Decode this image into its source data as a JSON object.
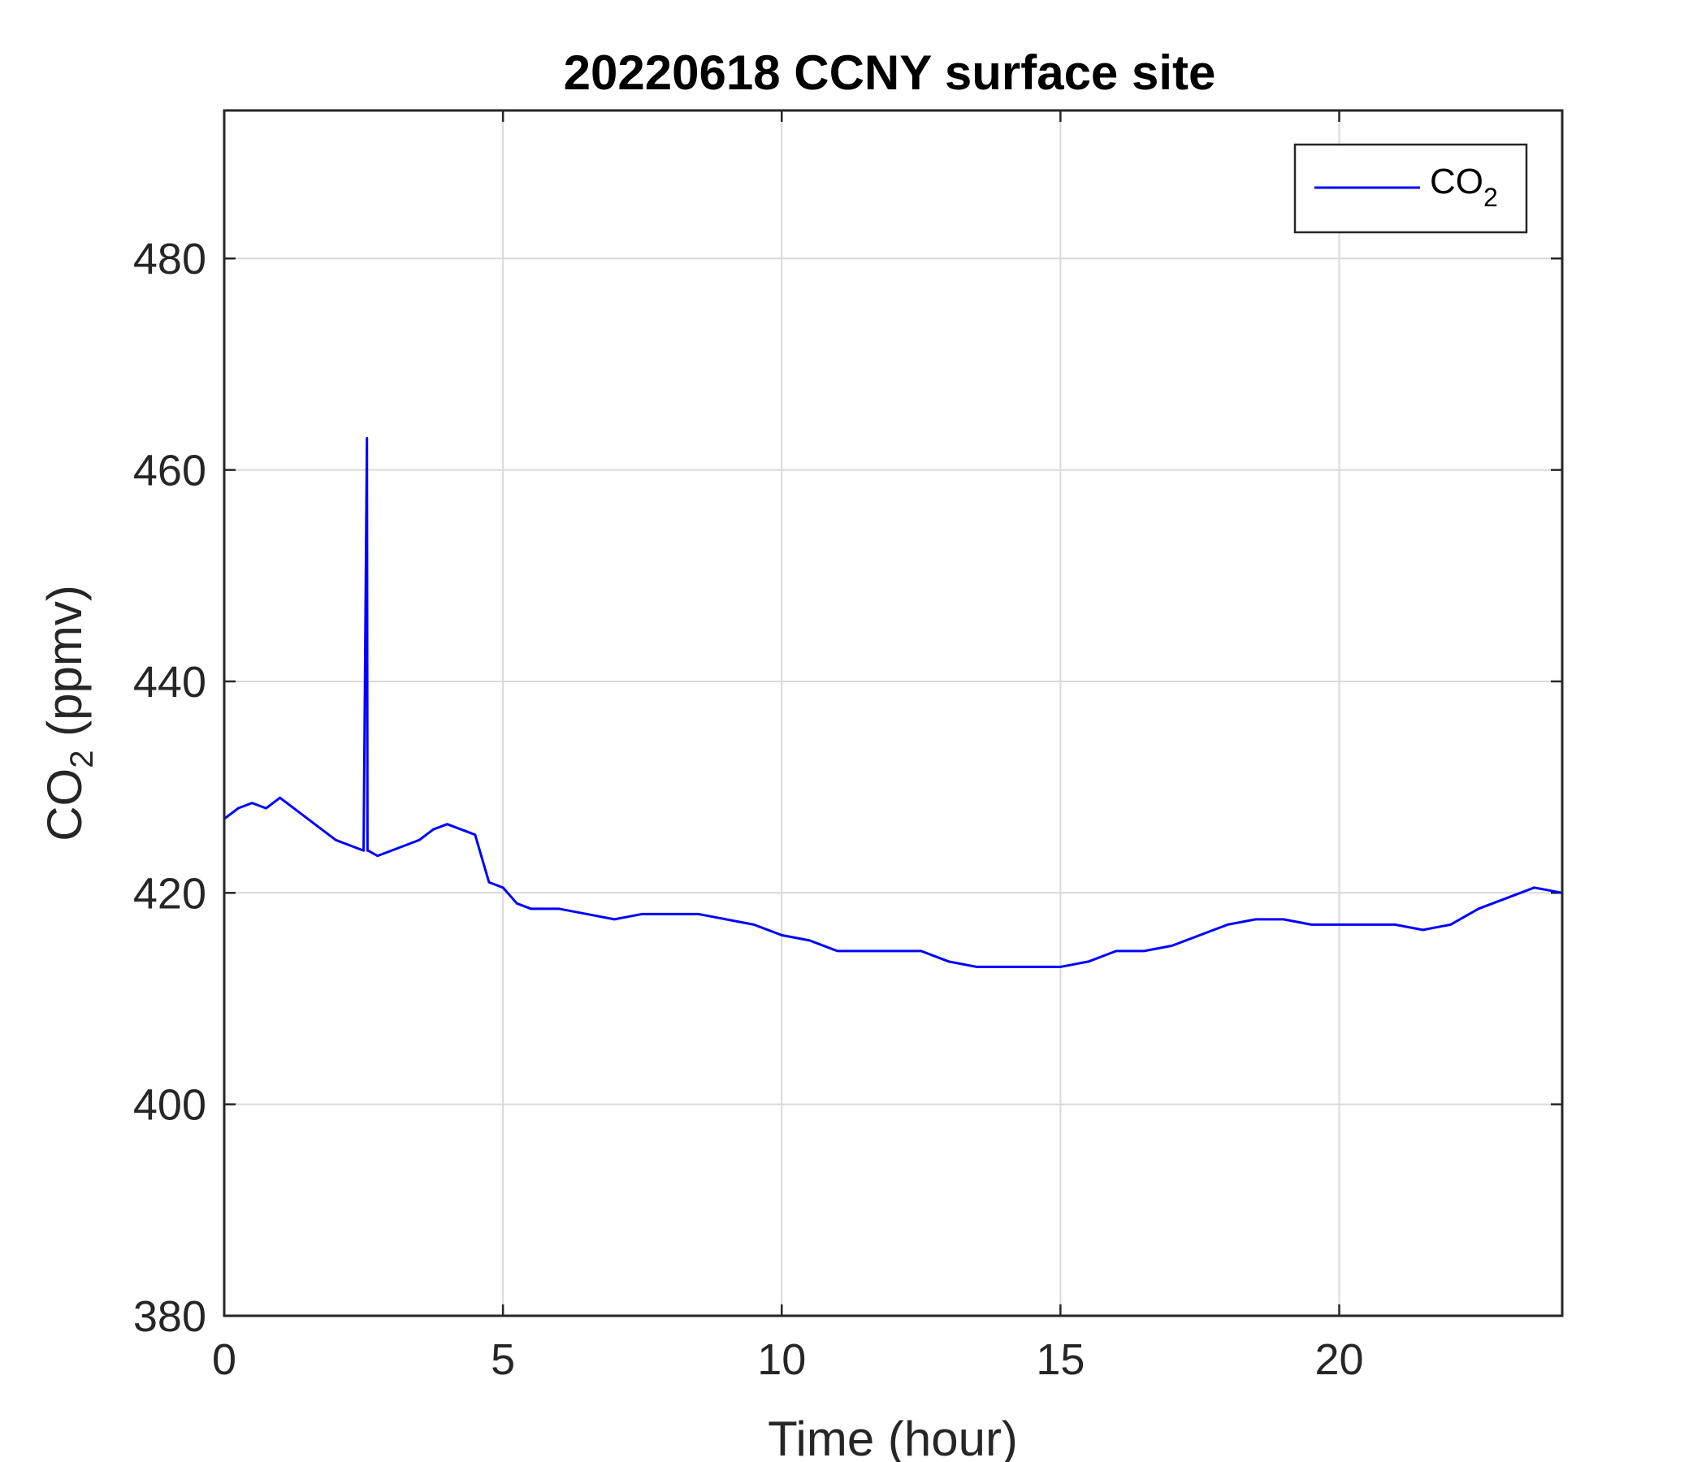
{
  "chart_data": {
    "type": "line",
    "title": "20220618 CCNY surface site",
    "xlabel": "Time (hour)",
    "ylabel": "CO2 (ppmv)",
    "ylabel_parts": {
      "base": "CO",
      "sub": "2",
      "rest": " (ppmv)"
    },
    "xlim": [
      0,
      24
    ],
    "ylim": [
      380,
      494
    ],
    "xticks": [
      0,
      5,
      10,
      15,
      20
    ],
    "xtick_labels": [
      "0",
      "5",
      "10",
      "15",
      "20"
    ],
    "yticks": [
      380,
      400,
      420,
      440,
      460,
      480
    ],
    "ytick_labels": [
      "380",
      "400",
      "420",
      "440",
      "460",
      "480"
    ],
    "grid": true,
    "legend": "top-right",
    "series": [
      {
        "name": "CO2",
        "name_parts": {
          "base": "CO",
          "sub": "2"
        },
        "color": "#0000ff",
        "x": [
          0,
          0.25,
          0.5,
          0.75,
          1.0,
          1.25,
          1.5,
          1.75,
          2.0,
          2.25,
          2.5,
          2.56,
          2.57,
          2.58,
          2.75,
          3.0,
          3.25,
          3.5,
          3.75,
          4.0,
          4.25,
          4.5,
          4.75,
          5.0,
          5.25,
          5.5,
          6.0,
          6.5,
          7.0,
          7.5,
          8.0,
          8.5,
          9.0,
          9.5,
          10.0,
          10.5,
          11.0,
          11.5,
          12.0,
          12.5,
          13.0,
          13.5,
          14.0,
          14.5,
          15.0,
          15.5,
          16.0,
          16.5,
          17.0,
          17.5,
          18.0,
          18.5,
          19.0,
          19.5,
          20.0,
          20.5,
          21.0,
          21.5,
          22.0,
          22.5,
          23.0,
          23.5,
          24.0
        ],
        "y": [
          427,
          428,
          428.5,
          428,
          429,
          428,
          427,
          426,
          425,
          424.5,
          424,
          463,
          424,
          424,
          423.5,
          424,
          424.5,
          425,
          426,
          426.5,
          426,
          425.5,
          421,
          420.5,
          419,
          418.5,
          418.5,
          418,
          417.5,
          418,
          418,
          418,
          417.5,
          417,
          416,
          415.5,
          414.5,
          414.5,
          414.5,
          414.5,
          413.5,
          413,
          413,
          413,
          413,
          413.5,
          414.5,
          414.5,
          415,
          416,
          417,
          417.5,
          417.5,
          417,
          417,
          417,
          417,
          416.5,
          417,
          418.5,
          419.5,
          420.5,
          420
        ]
      }
    ]
  }
}
